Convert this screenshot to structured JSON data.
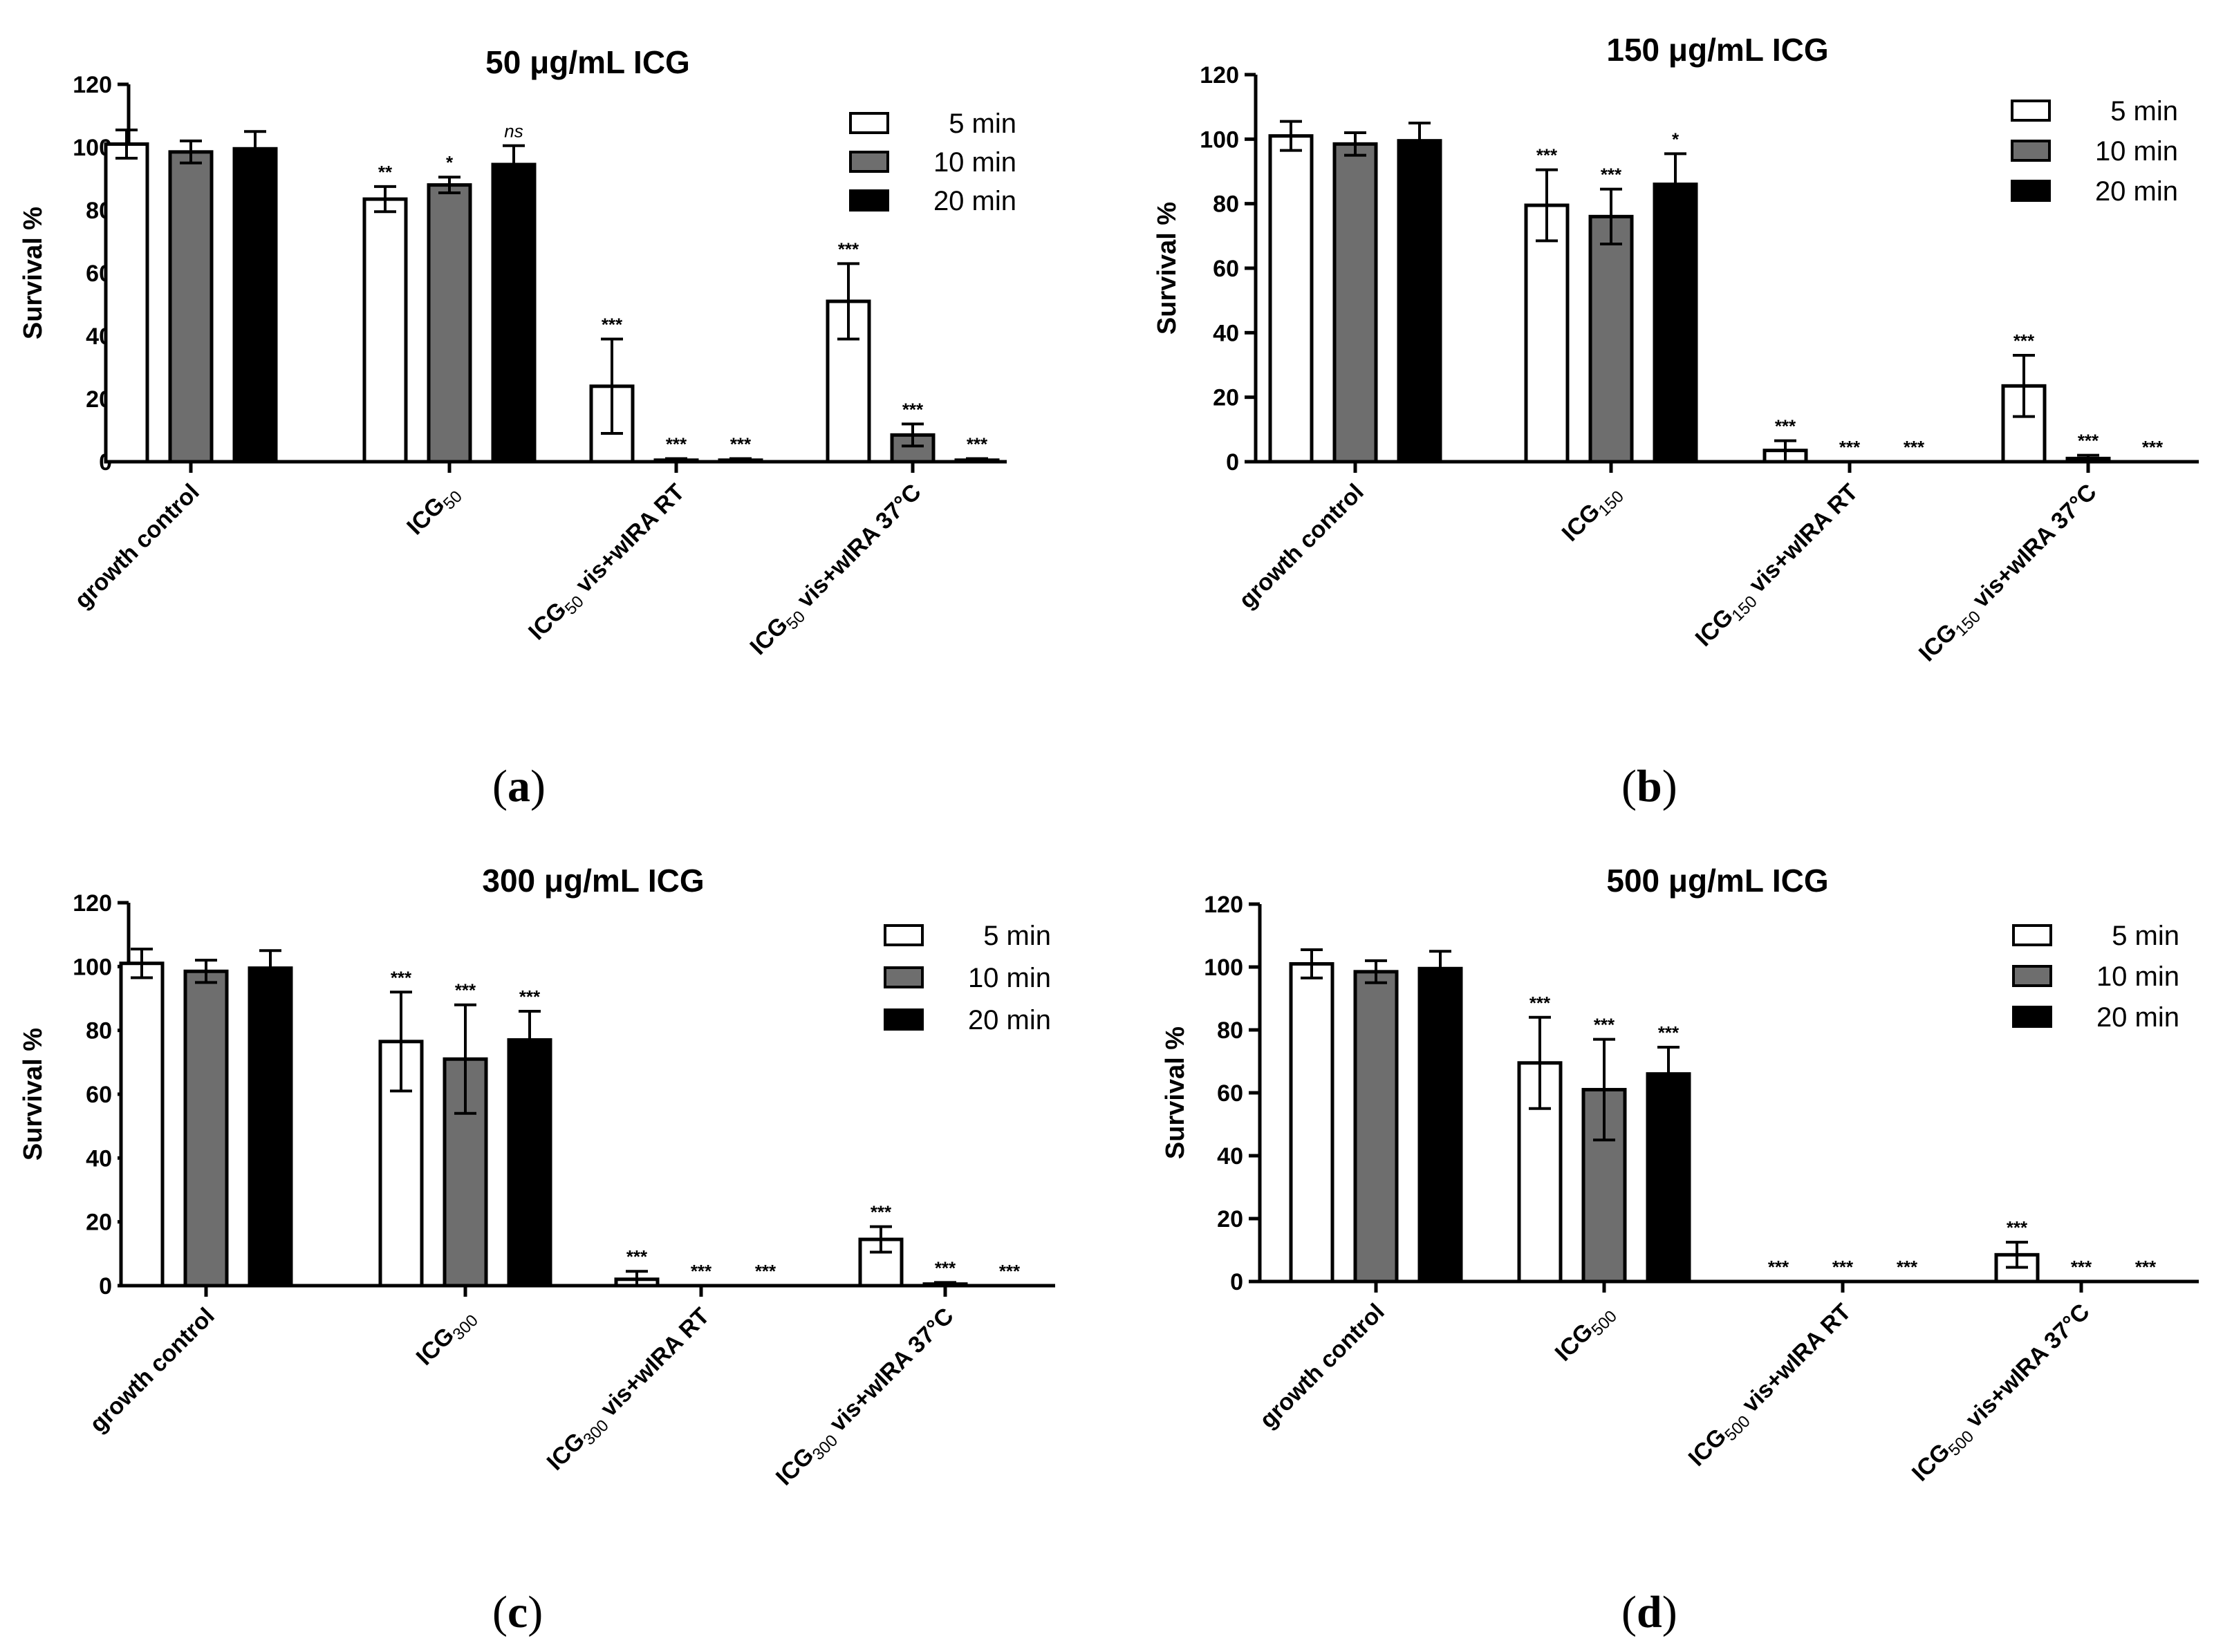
{
  "legend": [
    "5 min",
    "10 min",
    "20 min"
  ],
  "series_colors": [
    "#ffffff",
    "#6e6e6e",
    "#000000"
  ],
  "chart_data": [
    {
      "type": "bar",
      "panel_label": "a",
      "title": "50 μg/mL ICG",
      "ylabel": "Survival %",
      "ylim": [
        0,
        120
      ],
      "yticks": [
        0,
        20,
        40,
        60,
        80,
        100,
        120
      ],
      "categories": [
        {
          "main": "growth control",
          "sub": "",
          "rest": ""
        },
        {
          "main": "ICG",
          "sub": "50",
          "rest": ""
        },
        {
          "main": "ICG",
          "sub": "50",
          "rest": " vis+wIRA RT"
        },
        {
          "main": "ICG",
          "sub": "50",
          "rest": " vis+wIRA 37°C"
        }
      ],
      "series": [
        {
          "name": "5 min",
          "values": [
            101,
            83.5,
            24,
            51
          ],
          "errors": [
            4.5,
            4,
            15,
            12
          ],
          "sig": [
            "",
            "**",
            "***",
            "***"
          ]
        },
        {
          "name": "10 min",
          "values": [
            98.5,
            88,
            0.5,
            8.5
          ],
          "errors": [
            3.5,
            2.5,
            0.5,
            3.5
          ],
          "sig": [
            "",
            "*",
            "***",
            "***"
          ]
        },
        {
          "name": "20 min",
          "values": [
            99.5,
            94.5,
            0.5,
            0.5
          ],
          "errors": [
            5.5,
            6,
            0.5,
            0.5
          ],
          "sig": [
            "",
            "ns",
            "***",
            "***"
          ]
        }
      ]
    },
    {
      "type": "bar",
      "panel_label": "b",
      "title": "150 μg/mL ICG",
      "ylabel": "Survival %",
      "ylim": [
        0,
        120
      ],
      "yticks": [
        0,
        20,
        40,
        60,
        80,
        100,
        120
      ],
      "categories": [
        {
          "main": "growth control",
          "sub": "",
          "rest": ""
        },
        {
          "main": "ICG",
          "sub": "150",
          "rest": ""
        },
        {
          "main": "ICG",
          "sub": "150",
          "rest": " vis+wIRA RT"
        },
        {
          "main": "ICG",
          "sub": "150",
          "rest": " vis+wIRA 37°C"
        }
      ],
      "series": [
        {
          "name": "5 min",
          "values": [
            101,
            79.5,
            3.5,
            23.5
          ],
          "errors": [
            4.5,
            11,
            3,
            9.5
          ],
          "sig": [
            "",
            "***",
            "***",
            "***"
          ]
        },
        {
          "name": "10 min",
          "values": [
            98.5,
            76,
            0,
            1
          ],
          "errors": [
            3.5,
            8.5,
            0,
            1
          ],
          "sig": [
            "",
            "***",
            "***",
            "***"
          ]
        },
        {
          "name": "20 min",
          "values": [
            99.5,
            86,
            0,
            0
          ],
          "errors": [
            5.5,
            9.5,
            0,
            0
          ],
          "sig": [
            "",
            "*",
            "***",
            "***"
          ]
        }
      ]
    },
    {
      "type": "bar",
      "panel_label": "c",
      "title": "300 μg/mL ICG",
      "ylabel": "Survival %",
      "ylim": [
        0,
        120
      ],
      "yticks": [
        0,
        20,
        40,
        60,
        80,
        100,
        120
      ],
      "categories": [
        {
          "main": "growth control",
          "sub": "",
          "rest": ""
        },
        {
          "main": "ICG",
          "sub": "300",
          "rest": ""
        },
        {
          "main": "ICG",
          "sub": "300",
          "rest": " vis+wIRA RT"
        },
        {
          "main": "ICG",
          "sub": "300",
          "rest": " vis+wIRA 37°C"
        }
      ],
      "series": [
        {
          "name": "5 min",
          "values": [
            101,
            76.5,
            2,
            14.5
          ],
          "errors": [
            4.5,
            15.5,
            2.5,
            4
          ],
          "sig": [
            "",
            "***",
            "***",
            "***"
          ]
        },
        {
          "name": "10 min",
          "values": [
            98.5,
            71,
            0,
            0.5
          ],
          "errors": [
            3.5,
            17,
            0,
            0.5
          ],
          "sig": [
            "",
            "***",
            "***",
            "***"
          ]
        },
        {
          "name": "20 min",
          "values": [
            99.5,
            77,
            0,
            0
          ],
          "errors": [
            5.5,
            9,
            0,
            0
          ],
          "sig": [
            "",
            "***",
            "***",
            "***"
          ]
        }
      ]
    },
    {
      "type": "bar",
      "panel_label": "d",
      "title": "500 μg/mL ICG",
      "ylabel": "Survival %",
      "ylim": [
        0,
        120
      ],
      "yticks": [
        0,
        20,
        40,
        60,
        80,
        100,
        120
      ],
      "categories": [
        {
          "main": "growth control",
          "sub": "",
          "rest": ""
        },
        {
          "main": "ICG",
          "sub": "500",
          "rest": ""
        },
        {
          "main": "ICG",
          "sub": "500",
          "rest": " vis+wIRA RT"
        },
        {
          "main": "ICG",
          "sub": "500",
          "rest": " vis+wIRA 37°C"
        }
      ],
      "series": [
        {
          "name": "5 min",
          "values": [
            101,
            69.5,
            0,
            8.5
          ],
          "errors": [
            4.5,
            14.5,
            0,
            4
          ],
          "sig": [
            "",
            "***",
            "***",
            "***"
          ]
        },
        {
          "name": "10 min",
          "values": [
            98.5,
            61,
            0,
            0
          ],
          "errors": [
            3.5,
            16,
            0,
            0
          ],
          "sig": [
            "",
            "***",
            "***",
            "***"
          ]
        },
        {
          "name": "20 min",
          "values": [
            99.5,
            66,
            0,
            0
          ],
          "errors": [
            5.5,
            8.5,
            0,
            0
          ],
          "sig": [
            "",
            "***",
            "***",
            "***"
          ]
        }
      ]
    }
  ]
}
